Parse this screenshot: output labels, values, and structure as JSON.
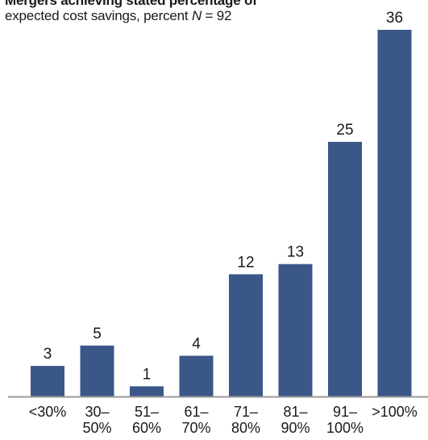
{
  "chart_data": {
    "type": "bar",
    "title_line1": "Mergers achieving stated percentage of",
    "title_line2": "expected cost savings, percent N = 92",
    "categories": [
      [
        "<30%",
        ""
      ],
      [
        "30–",
        "50%"
      ],
      [
        "51–",
        "60%"
      ],
      [
        "61–",
        "70%"
      ],
      [
        "71–",
        "80%"
      ],
      [
        "81–",
        "90%"
      ],
      [
        "91–",
        "100%"
      ],
      [
        ">100%",
        ""
      ]
    ],
    "values": [
      3,
      5,
      1,
      4,
      12,
      13,
      25,
      36
    ],
    "ylim": [
      0,
      36
    ],
    "grid": false,
    "legend": "none",
    "colors": {
      "bar": "#3a5788",
      "baseline": "#9a9a9a",
      "text": "#1a1a1a"
    }
  }
}
